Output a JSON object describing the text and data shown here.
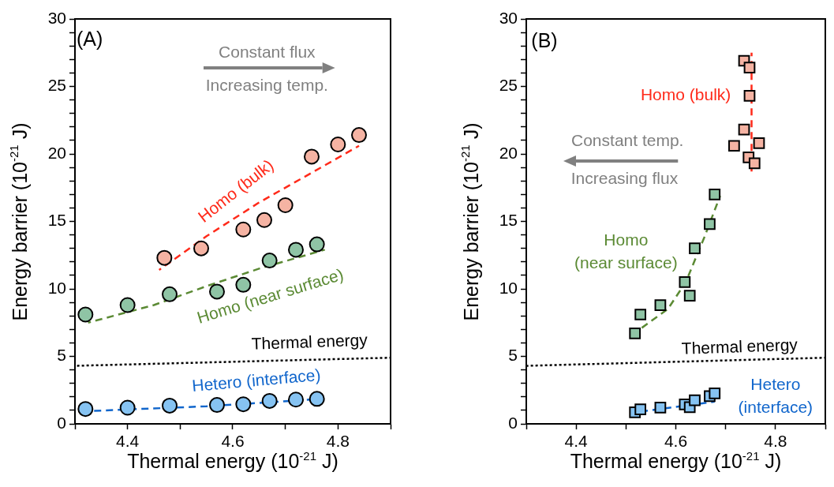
{
  "chart_data": [
    {
      "type": "scatter",
      "xlabel": "Thermal energy (10$^{-21}$ J)",
      "ylabel": "Energy barrier (10$^{-21}$ J)",
      "xlim": [
        4.3,
        4.9
      ],
      "ylim": [
        0,
        30
      ],
      "xticks": [
        {
          "value": 4.3,
          "label": null
        },
        4.4,
        {
          "value": 4.5,
          "label": null
        },
        4.6,
        {
          "value": 4.7,
          "label": null
        },
        4.8,
        {
          "value": 4.9,
          "label": null
        }
      ],
      "yticks": [
        0,
        {
          "value": 1,
          "label": null
        },
        {
          "value": 2,
          "label": null
        },
        {
          "value": 3,
          "label": null
        },
        {
          "value": 4,
          "label": null
        },
        5,
        {
          "value": 6,
          "label": null
        },
        {
          "value": 7,
          "label": null
        },
        {
          "value": 8,
          "label": null
        },
        {
          "value": 9,
          "label": null
        },
        10,
        {
          "value": 11,
          "label": null
        },
        {
          "value": 12,
          "label": null
        },
        {
          "value": 13,
          "label": null
        },
        {
          "value": 14,
          "label": null
        },
        15,
        {
          "value": 16,
          "label": null
        },
        {
          "value": 17,
          "label": null
        },
        {
          "value": 18,
          "label": null
        },
        {
          "value": 19,
          "label": null
        },
        20,
        {
          "value": 21,
          "label": null
        },
        {
          "value": 22,
          "label": null
        },
        {
          "value": 23,
          "label": null
        },
        {
          "value": 24,
          "label": null
        },
        25,
        {
          "value": 26,
          "label": null
        },
        {
          "value": 27,
          "label": null
        },
        {
          "value": 28,
          "label": null
        },
        {
          "value": 29,
          "label": null
        },
        30
      ],
      "grid": false,
      "legend": false,
      "line_style": "dashed",
      "annotations": [
        "(A)",
        "Constant flux",
        "Increasing temp."
      ],
      "series": [
        {
          "marker": "circle",
          "color": "#f5b3a3",
          "x": [
            4.47,
            4.54,
            4.62,
            4.66,
            4.7,
            4.75,
            4.8,
            4.84
          ],
          "values": [
            12.3,
            13.0,
            14.4,
            15.1,
            16.2,
            19.8,
            20.7,
            21.4
          ]
        },
        {
          "type": "line",
          "marker": "none",
          "name": "Homo (bulk)",
          "color": "#ff2a1a",
          "x": [
            4.46,
            4.55,
            4.65,
            4.75,
            4.84
          ],
          "values": [
            11.4,
            13.9,
            16.4,
            18.6,
            20.6
          ]
        },
        {
          "marker": "circle",
          "color": "#8fc4a5",
          "x": [
            4.32,
            4.4,
            4.48,
            4.57,
            4.62,
            4.67,
            4.72,
            4.76
          ],
          "values": [
            8.1,
            8.8,
            9.6,
            9.8,
            10.3,
            12.1,
            12.9,
            13.3
          ]
        },
        {
          "type": "line",
          "marker": "none",
          "name": "Homo (near surface)",
          "color": "#5b8a34",
          "x": [
            4.325,
            4.45,
            4.55,
            4.65,
            4.775
          ],
          "values": [
            7.5,
            8.8,
            10.2,
            11.5,
            12.9
          ]
        },
        {
          "marker": "circle",
          "color": "#86c3f2",
          "x": [
            4.32,
            4.4,
            4.48,
            4.57,
            4.62,
            4.67,
            4.72,
            4.76
          ],
          "values": [
            1.1,
            1.2,
            1.35,
            1.4,
            1.45,
            1.7,
            1.8,
            1.85
          ]
        },
        {
          "type": "line",
          "marker": "none",
          "name": "Hetero (interface)",
          "color": "#1166cc",
          "x": [
            4.327,
            4.55,
            4.77
          ],
          "values": [
            0.95,
            1.3,
            1.85
          ]
        },
        {
          "type": "line",
          "marker": "none",
          "name": "Thermal energy",
          "color": "#000000",
          "line_style": "dotted",
          "x": [
            4.3,
            4.9
          ],
          "values": [
            4.3,
            4.9
          ]
        }
      ]
    },
    {
      "type": "scatter",
      "xlabel": "Thermal energy (10$^{-21}$ J)",
      "ylabel": "Energy barrier (10$^{-21}$ J)",
      "xlim": [
        4.3,
        4.9
      ],
      "ylim": [
        0,
        30
      ],
      "xticks": [
        {
          "value": 4.3,
          "label": null
        },
        4.4,
        {
          "value": 4.5,
          "label": null
        },
        4.6,
        {
          "value": 4.7,
          "label": null
        },
        4.8,
        {
          "value": 4.9,
          "label": null
        }
      ],
      "yticks": [
        0,
        {
          "value": 1,
          "label": null
        },
        {
          "value": 2,
          "label": null
        },
        {
          "value": 3,
          "label": null
        },
        {
          "value": 4,
          "label": null
        },
        5,
        {
          "value": 6,
          "label": null
        },
        {
          "value": 7,
          "label": null
        },
        {
          "value": 8,
          "label": null
        },
        {
          "value": 9,
          "label": null
        },
        10,
        {
          "value": 11,
          "label": null
        },
        {
          "value": 12,
          "label": null
        },
        {
          "value": 13,
          "label": null
        },
        {
          "value": 14,
          "label": null
        },
        15,
        {
          "value": 16,
          "label": null
        },
        {
          "value": 17,
          "label": null
        },
        {
          "value": 18,
          "label": null
        },
        {
          "value": 19,
          "label": null
        },
        20,
        {
          "value": 21,
          "label": null
        },
        {
          "value": 22,
          "label": null
        },
        {
          "value": 23,
          "label": null
        },
        {
          "value": 24,
          "label": null
        },
        25,
        {
          "value": 26,
          "label": null
        },
        {
          "value": 27,
          "label": null
        },
        {
          "value": 28,
          "label": null
        },
        {
          "value": 29,
          "label": null
        },
        30
      ],
      "grid": false,
      "legend": false,
      "line_style": "dashed",
      "annotations": [
        "(B)",
        "Constant temp.",
        "Increasing flux"
      ],
      "series": [
        {
          "marker": "square",
          "color": "#f5b3a3",
          "x": [
            4.737,
            4.748,
            4.748,
            4.737,
            4.717,
            4.767,
            4.746,
            4.758
          ],
          "values": [
            26.9,
            26.4,
            24.3,
            21.8,
            20.6,
            20.8,
            19.75,
            19.3
          ]
        },
        {
          "type": "line",
          "marker": "none",
          "name": "Homo (bulk)",
          "color": "#ff2a1a",
          "x": [
            4.752,
            4.752
          ],
          "values": [
            18.7,
            27.5
          ]
        },
        {
          "marker": "square",
          "color": "#8fc4a5",
          "x": [
            4.518,
            4.529,
            4.569,
            4.618,
            4.628,
            4.638,
            4.668,
            4.678
          ],
          "values": [
            6.7,
            8.1,
            8.8,
            10.5,
            9.5,
            13.0,
            14.8,
            17.0
          ]
        },
        {
          "type": "line",
          "marker": "none",
          "name": "Homo (near surface)",
          "color": "#5b8a34",
          "x": [
            4.52,
            4.584,
            4.62,
            4.657,
            4.689
          ],
          "values": [
            6.8,
            8.5,
            10.5,
            13.8,
            16.9
          ]
        },
        {
          "marker": "square",
          "color": "#86c3f2",
          "x": [
            4.518,
            4.529,
            4.569,
            4.618,
            4.628,
            4.638,
            4.668,
            4.678
          ],
          "values": [
            0.86,
            1.07,
            1.2,
            1.44,
            1.23,
            1.75,
            2.06,
            2.26
          ]
        },
        {
          "type": "line",
          "marker": "none",
          "name": "Hetero (interface)",
          "color": "#1166cc",
          "x": [
            4.508,
            4.678
          ],
          "values": [
            0.8,
            1.65
          ]
        },
        {
          "type": "line",
          "marker": "none",
          "name": "Thermal energy",
          "color": "#000000",
          "line_style": "dotted",
          "x": [
            4.3,
            4.9
          ],
          "values": [
            4.3,
            4.9
          ]
        }
      ]
    }
  ]
}
